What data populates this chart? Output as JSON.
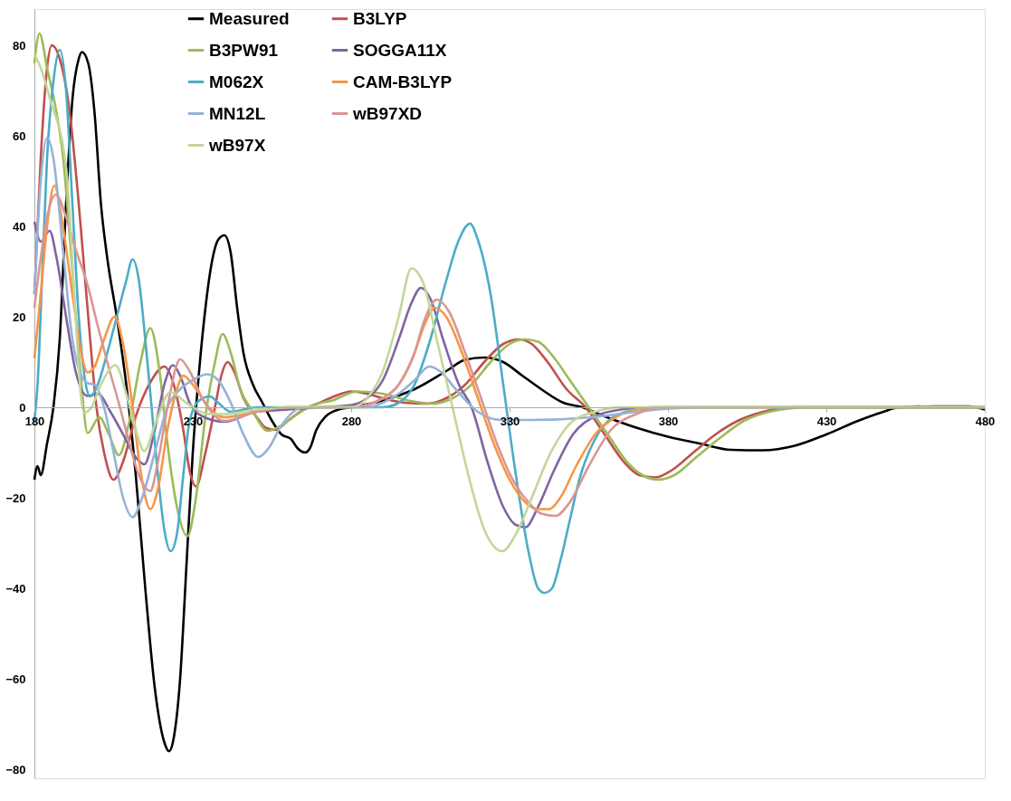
{
  "chart_data": {
    "type": "line",
    "xlim": [
      180,
      480
    ],
    "ylim": [
      -82,
      88
    ],
    "xticks": [
      180,
      230,
      280,
      330,
      380,
      430,
      480
    ],
    "yticks": [
      -80,
      -60,
      -40,
      -20,
      0,
      20,
      40,
      60,
      80
    ],
    "grid": false,
    "legend": "top",
    "line_style": "solid",
    "series": [
      {
        "name": "Measured",
        "color": "#000000",
        "x": [
          180,
          181,
          182,
          184,
          186,
          188,
          190,
          192,
          194,
          195,
          197,
          199,
          201,
          203,
          206,
          209,
          212,
          215,
          218,
          221,
          222.5,
          224,
          226,
          228,
          230,
          232,
          234,
          236,
          238,
          240,
          242,
          244,
          246,
          249,
          252,
          255,
          258,
          261,
          263,
          265.5,
          267,
          269,
          272,
          276,
          280,
          290,
          300,
          310,
          316,
          322,
          328,
          334,
          340,
          347,
          353,
          360,
          370,
          380,
          390,
          400,
          410,
          420,
          430,
          440,
          448,
          453,
          465,
          475,
          480
        ],
        "values": [
          -16,
          -13,
          -15,
          -8,
          0,
          15,
          45,
          68,
          77,
          78.5,
          76,
          65,
          45,
          33,
          20,
          5,
          -15,
          -40,
          -62,
          -74,
          -76,
          -73,
          -60,
          -35,
          -10,
          8,
          22,
          32,
          37,
          38,
          34,
          22,
          12,
          5,
          1,
          -3,
          -6,
          -7,
          -9,
          -10,
          -9,
          -5,
          -2,
          -0.5,
          0,
          1.5,
          4,
          8,
          10.5,
          11,
          10,
          7,
          4,
          1,
          0,
          -2,
          -4.5,
          -6.5,
          -8,
          -9.4,
          -9.5,
          -8.5,
          -6,
          -3,
          -1,
          0,
          0.2,
          0.2,
          -0.5
        ]
      },
      {
        "name": "B3LYP",
        "color": "#c0504d",
        "x": [
          180,
          182,
          184,
          185.5,
          188,
          191,
          194,
          197,
          199.6,
          202,
          205,
          208,
          212,
          217,
          221,
          224,
          227,
          229,
          231,
          234,
          237,
          239,
          241,
          243,
          246,
          250,
          253,
          256,
          260,
          265,
          270,
          275,
          280,
          285,
          290,
          297,
          304,
          310,
          316,
          322,
          328,
          333,
          337,
          342,
          348,
          354,
          360,
          366,
          371,
          376,
          381,
          388,
          395,
          402,
          410,
          420,
          480
        ],
        "values": [
          25,
          55,
          75,
          80,
          77,
          66,
          45,
          20,
          0,
          -10,
          -16,
          -12,
          -2,
          6,
          9,
          5,
          -5,
          -14,
          -17.5,
          -10,
          0,
          7,
          10,
          8,
          2,
          -2,
          -4.5,
          -5,
          -3,
          -0.5,
          1,
          2.5,
          3.5,
          3,
          2,
          1,
          0.8,
          2,
          5,
          10,
          14,
          15,
          14,
          10,
          4,
          0,
          -6,
          -12,
          -15,
          -15.5,
          -14,
          -10,
          -6,
          -3,
          -1,
          0,
          0
        ]
      },
      {
        "name": "B3PW91",
        "color": "#9bbb59",
        "x": [
          180,
          181.6,
          184,
          187,
          189,
          192,
          194.5,
          196.8,
          200.5,
          203.5,
          206.7,
          210,
          213.5,
          216.6,
          219.5,
          222,
          225,
          228.3,
          231,
          234,
          237,
          239.4,
          242,
          245,
          249,
          253.6,
          258,
          263,
          268,
          274,
          282,
          290,
          298,
          305.6,
          312,
          318,
          324,
          330,
          334.8,
          339,
          344,
          349,
          355,
          361,
          367,
          372,
          377,
          382,
          389,
          396,
          404,
          412,
          425,
          480
        ],
        "values": [
          76,
          82.6,
          75,
          65,
          55.6,
          30,
          8,
          -5.7,
          -2.2,
          -6,
          -10.6,
          -3,
          10,
          17.5,
          8,
          -8,
          -22,
          -28.5,
          -20,
          -2,
          10,
          16.2,
          12,
          4,
          -1,
          -5.2,
          -4,
          -1.5,
          0.5,
          1.5,
          3.5,
          3,
          1.5,
          0.8,
          2,
          5,
          10,
          14,
          15,
          14.5,
          11,
          6,
          0,
          -6,
          -12,
          -15,
          -16,
          -15,
          -11,
          -7,
          -3,
          -1,
          0,
          0
        ]
      },
      {
        "name": "SOGGA11X",
        "color": "#8064a2",
        "x": [
          180,
          182,
          184.8,
          187,
          190,
          193,
          196.8,
          200,
          204,
          208,
          211,
          214.7,
          218,
          221,
          223.7,
          226,
          229,
          233,
          240,
          250,
          260,
          270,
          280,
          285,
          290,
          295,
          299,
          302,
          305,
          309,
          314,
          318,
          323,
          328,
          332,
          335,
          339,
          344,
          350,
          357,
          365,
          375,
          480
        ],
        "values": [
          41,
          36.6,
          39,
          33,
          20,
          8,
          2.5,
          3,
          -1,
          -6,
          -10,
          -12.6,
          -5,
          5,
          9.3,
          7,
          1,
          -2,
          -3.2,
          -1,
          -0.5,
          0,
          0.5,
          2,
          6,
          15,
          23,
          26.4,
          24,
          15,
          5,
          0,
          -12,
          -22,
          -26,
          -26.5,
          -22,
          -14,
          -6,
          -2,
          -0.5,
          0,
          0
        ]
      },
      {
        "name": "M062X",
        "color": "#4bacc6",
        "x": [
          180,
          181,
          182.5,
          184,
          186,
          188,
          190,
          192,
          194,
          196,
          197.6,
          200,
          203,
          206,
          209,
          211,
          213,
          215,
          217,
          219,
          221,
          223,
          225,
          227,
          229,
          232,
          235.4,
          238,
          242,
          250,
          280,
          290,
          295,
          300,
          305,
          310,
          314,
          317.5,
          320,
          324,
          328,
          332,
          336,
          339,
          341,
          343.4,
          346,
          349,
          352,
          357,
          362,
          370,
          380,
          480
        ],
        "values": [
          -3,
          5,
          30,
          55,
          72,
          79,
          70,
          45,
          20,
          6,
          2.4,
          5,
          12,
          20,
          28,
          32.7,
          28,
          15,
          0,
          -15,
          -27,
          -31.8,
          -28,
          -15,
          -3,
          1.5,
          2.4,
          1,
          -1,
          0,
          0,
          0,
          1,
          5,
          15,
          28,
          37,
          40.6,
          37,
          25,
          5,
          -15,
          -32,
          -40,
          -41,
          -40,
          -34,
          -25,
          -16,
          -7,
          -2.5,
          -0.5,
          0,
          0
        ]
      },
      {
        "name": "CAM-B3LYP",
        "color": "#f79646",
        "x": [
          180,
          182,
          184,
          186.3,
          189,
          192,
          194.8,
          196.8,
          199,
          202,
          205.3,
          208,
          211,
          213.5,
          216.6,
          219,
          222,
          225,
          227,
          230,
          235,
          240,
          250,
          260,
          280,
          290,
          295,
          300,
          303,
          306.4,
          310,
          315,
          320,
          325,
          330,
          335,
          339,
          342.5,
          346,
          351,
          357,
          364,
          370,
          375,
          480
        ],
        "values": [
          10.8,
          25,
          40,
          49,
          40,
          25,
          12,
          7.7,
          9,
          15,
          20,
          14,
          0,
          -14,
          -22.5,
          -18,
          -5,
          4,
          7,
          5,
          0,
          -2.2,
          -1,
          0,
          0,
          2,
          5,
          12,
          18,
          22,
          20,
          12,
          2,
          -8,
          -16,
          -21,
          -22.5,
          -22.5,
          -20,
          -13,
          -6,
          -2,
          -0.5,
          0,
          0
        ]
      },
      {
        "name": "MN12L",
        "color": "#95b3d7",
        "x": [
          180,
          182,
          184,
          186,
          189,
          192,
          194.8,
          197,
          199,
          202,
          205,
          208,
          211,
          214,
          218,
          222,
          226,
          230,
          234.5,
          238,
          242,
          246,
          250.7,
          254,
          258,
          265,
          275,
          285,
          290,
          295,
          300,
          304.7,
          308,
          313,
          320,
          327.4,
          337,
          356,
          370,
          380,
          390,
          480
        ],
        "values": [
          25,
          50,
          59.6,
          55,
          35,
          15,
          7,
          5.3,
          5,
          0,
          -10,
          -20,
          -24.3,
          -20,
          -10,
          0,
          4,
          6,
          7.3,
          6,
          1,
          -6,
          -11,
          -9,
          -4,
          0,
          0,
          0,
          1,
          3,
          6,
          9,
          8,
          4,
          -1,
          -2.8,
          -2.8,
          -2.2,
          -1,
          -0.3,
          0,
          0
        ]
      },
      {
        "name": "wB97XD",
        "color": "#d99694",
        "x": [
          180,
          182,
          184,
          186.8,
          190,
          193,
          196.8,
          200,
          203,
          207,
          210,
          213,
          216.6,
          219,
          222,
          226,
          229,
          233,
          240,
          250,
          260,
          280,
          290,
          295,
          300,
          303,
          307,
          311,
          316,
          321,
          326,
          331,
          336,
          340,
          344.5,
          349,
          355,
          362,
          370,
          378,
          480
        ],
        "values": [
          22,
          33,
          42,
          47,
          42,
          35,
          27,
          18,
          10,
          0,
          -8,
          -15,
          -18.5,
          -12,
          0,
          10.6,
          8,
          2,
          -3,
          -1,
          0,
          0,
          2,
          5,
          12,
          19,
          23.8,
          21,
          12,
          2,
          -8,
          -16,
          -21,
          -23.5,
          -24,
          -21,
          -13,
          -5,
          -1.5,
          0,
          0
        ]
      },
      {
        "name": "wB97X",
        "color": "#c3d69b",
        "x": [
          180,
          182,
          185,
          190,
          193,
          194.8,
          195.7,
          198,
          201,
          205.6,
          209,
          212,
          214.7,
          218,
          223,
          227,
          230,
          235,
          240,
          250,
          260,
          280,
          285,
          290,
          295,
          299,
          303,
          307,
          312,
          317,
          322,
          327.7,
          332,
          337,
          343,
          350,
          357,
          365,
          480
        ],
        "values": [
          78,
          75,
          68,
          53,
          20,
          1.8,
          -1.2,
          0,
          5,
          9.3,
          3,
          -5,
          -9.7,
          -4,
          3.4,
          1.5,
          0,
          -1.5,
          -1.5,
          -0.5,
          0,
          0,
          2,
          8,
          20,
          30.7,
          27,
          15,
          0,
          -15,
          -27,
          -31.8,
          -28,
          -20,
          -10,
          -3,
          -1,
          0,
          0
        ]
      }
    ]
  }
}
